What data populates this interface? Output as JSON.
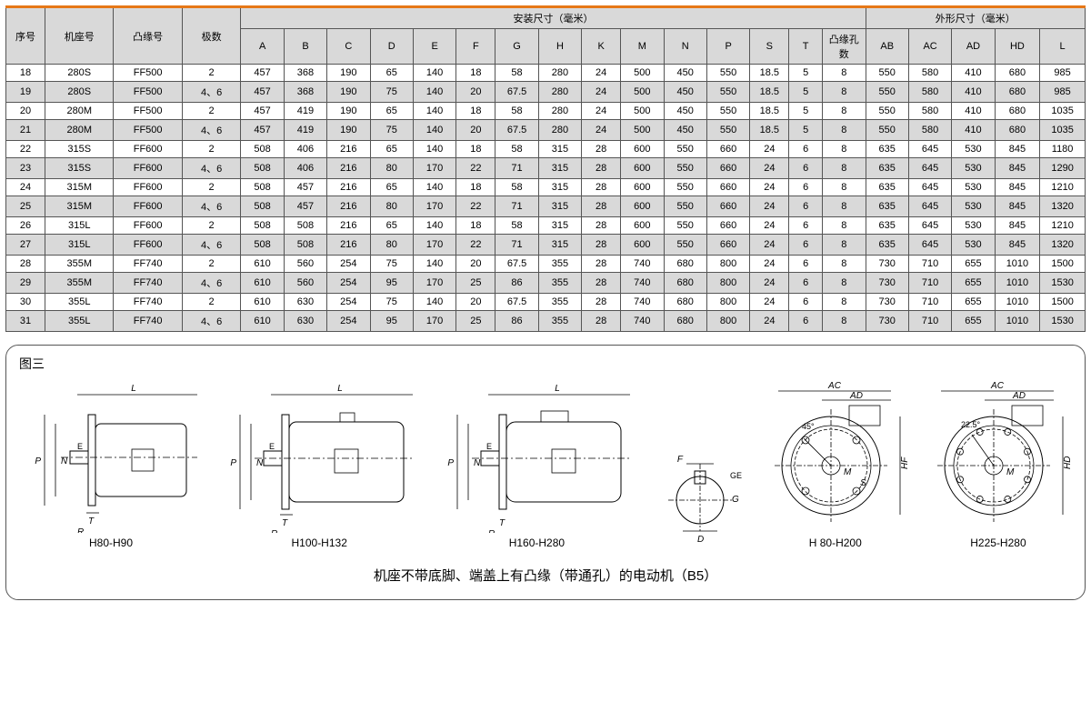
{
  "table": {
    "border_color": "#555555",
    "alt_row_bg": "#d9d9d9",
    "accent_color": "#e67817",
    "header": {
      "col_seq": "序号",
      "col_frame": "机座号",
      "col_flange": "凸缘号",
      "col_poles": "极数",
      "group_install": "安装尺寸（毫米）",
      "group_outline": "外形尺寸（毫米）",
      "A": "A",
      "B": "B",
      "C": "C",
      "D": "D",
      "E": "E",
      "F": "F",
      "G": "G",
      "H": "H",
      "K": "K",
      "M": "M",
      "N": "N",
      "P": "P",
      "S": "S",
      "T": "T",
      "flange_holes": "凸缘孔数",
      "AB": "AB",
      "AC": "AC",
      "AD": "AD",
      "HD": "HD",
      "L": "L"
    },
    "col_widths": {
      "seq": 40,
      "frame": 70,
      "flange": 70,
      "poles": 60,
      "A": 44,
      "B": 44,
      "C": 44,
      "D": 44,
      "E": 44,
      "F": 40,
      "G": 44,
      "H": 44,
      "K": 40,
      "M": 44,
      "N": 44,
      "P": 44,
      "S": 40,
      "T": 34,
      "holes": 44,
      "AB": 44,
      "AC": 44,
      "AD": 44,
      "HD": 46,
      "L": 46
    },
    "rows": [
      {
        "seq": "18",
        "frame": "280S",
        "flange": "FF500",
        "poles": "2",
        "A": "457",
        "B": "368",
        "C": "190",
        "D": "65",
        "E": "140",
        "F": "18",
        "G": "58",
        "H": "280",
        "K": "24",
        "M": "500",
        "N": "450",
        "P": "550",
        "S": "18.5",
        "T": "5",
        "holes": "8",
        "AB": "550",
        "AC": "580",
        "AD": "410",
        "HD": "680",
        "L": "985"
      },
      {
        "seq": "19",
        "frame": "280S",
        "flange": "FF500",
        "poles": "4、6",
        "A": "457",
        "B": "368",
        "C": "190",
        "D": "75",
        "E": "140",
        "F": "20",
        "G": "67.5",
        "H": "280",
        "K": "24",
        "M": "500",
        "N": "450",
        "P": "550",
        "S": "18.5",
        "T": "5",
        "holes": "8",
        "AB": "550",
        "AC": "580",
        "AD": "410",
        "HD": "680",
        "L": "985"
      },
      {
        "seq": "20",
        "frame": "280M",
        "flange": "FF500",
        "poles": "2",
        "A": "457",
        "B": "419",
        "C": "190",
        "D": "65",
        "E": "140",
        "F": "18",
        "G": "58",
        "H": "280",
        "K": "24",
        "M": "500",
        "N": "450",
        "P": "550",
        "S": "18.5",
        "T": "5",
        "holes": "8",
        "AB": "550",
        "AC": "580",
        "AD": "410",
        "HD": "680",
        "L": "1035"
      },
      {
        "seq": "21",
        "frame": "280M",
        "flange": "FF500",
        "poles": "4、6",
        "A": "457",
        "B": "419",
        "C": "190",
        "D": "75",
        "E": "140",
        "F": "20",
        "G": "67.5",
        "H": "280",
        "K": "24",
        "M": "500",
        "N": "450",
        "P": "550",
        "S": "18.5",
        "T": "5",
        "holes": "8",
        "AB": "550",
        "AC": "580",
        "AD": "410",
        "HD": "680",
        "L": "1035"
      },
      {
        "seq": "22",
        "frame": "315S",
        "flange": "FF600",
        "poles": "2",
        "A": "508",
        "B": "406",
        "C": "216",
        "D": "65",
        "E": "140",
        "F": "18",
        "G": "58",
        "H": "315",
        "K": "28",
        "M": "600",
        "N": "550",
        "P": "660",
        "S": "24",
        "T": "6",
        "holes": "8",
        "AB": "635",
        "AC": "645",
        "AD": "530",
        "HD": "845",
        "L": "1180"
      },
      {
        "seq": "23",
        "frame": "315S",
        "flange": "FF600",
        "poles": "4、6",
        "A": "508",
        "B": "406",
        "C": "216",
        "D": "80",
        "E": "170",
        "F": "22",
        "G": "71",
        "H": "315",
        "K": "28",
        "M": "600",
        "N": "550",
        "P": "660",
        "S": "24",
        "T": "6",
        "holes": "8",
        "AB": "635",
        "AC": "645",
        "AD": "530",
        "HD": "845",
        "L": "1290"
      },
      {
        "seq": "24",
        "frame": "315M",
        "flange": "FF600",
        "poles": "2",
        "A": "508",
        "B": "457",
        "C": "216",
        "D": "65",
        "E": "140",
        "F": "18",
        "G": "58",
        "H": "315",
        "K": "28",
        "M": "600",
        "N": "550",
        "P": "660",
        "S": "24",
        "T": "6",
        "holes": "8",
        "AB": "635",
        "AC": "645",
        "AD": "530",
        "HD": "845",
        "L": "1210"
      },
      {
        "seq": "25",
        "frame": "315M",
        "flange": "FF600",
        "poles": "4、6",
        "A": "508",
        "B": "457",
        "C": "216",
        "D": "80",
        "E": "170",
        "F": "22",
        "G": "71",
        "H": "315",
        "K": "28",
        "M": "600",
        "N": "550",
        "P": "660",
        "S": "24",
        "T": "6",
        "holes": "8",
        "AB": "635",
        "AC": "645",
        "AD": "530",
        "HD": "845",
        "L": "1320"
      },
      {
        "seq": "26",
        "frame": "315L",
        "flange": "FF600",
        "poles": "2",
        "A": "508",
        "B": "508",
        "C": "216",
        "D": "65",
        "E": "140",
        "F": "18",
        "G": "58",
        "H": "315",
        "K": "28",
        "M": "600",
        "N": "550",
        "P": "660",
        "S": "24",
        "T": "6",
        "holes": "8",
        "AB": "635",
        "AC": "645",
        "AD": "530",
        "HD": "845",
        "L": "1210"
      },
      {
        "seq": "27",
        "frame": "315L",
        "flange": "FF600",
        "poles": "4、6",
        "A": "508",
        "B": "508",
        "C": "216",
        "D": "80",
        "E": "170",
        "F": "22",
        "G": "71",
        "H": "315",
        "K": "28",
        "M": "600",
        "N": "550",
        "P": "660",
        "S": "24",
        "T": "6",
        "holes": "8",
        "AB": "635",
        "AC": "645",
        "AD": "530",
        "HD": "845",
        "L": "1320"
      },
      {
        "seq": "28",
        "frame": "355M",
        "flange": "FF740",
        "poles": "2",
        "A": "610",
        "B": "560",
        "C": "254",
        "D": "75",
        "E": "140",
        "F": "20",
        "G": "67.5",
        "H": "355",
        "K": "28",
        "M": "740",
        "N": "680",
        "P": "800",
        "S": "24",
        "T": "6",
        "holes": "8",
        "AB": "730",
        "AC": "710",
        "AD": "655",
        "HD": "1010",
        "L": "1500"
      },
      {
        "seq": "29",
        "frame": "355M",
        "flange": "FF740",
        "poles": "4、6",
        "A": "610",
        "B": "560",
        "C": "254",
        "D": "95",
        "E": "170",
        "F": "25",
        "G": "86",
        "H": "355",
        "K": "28",
        "M": "740",
        "N": "680",
        "P": "800",
        "S": "24",
        "T": "6",
        "holes": "8",
        "AB": "730",
        "AC": "710",
        "AD": "655",
        "HD": "1010",
        "L": "1530"
      },
      {
        "seq": "30",
        "frame": "355L",
        "flange": "FF740",
        "poles": "2",
        "A": "610",
        "B": "630",
        "C": "254",
        "D": "75",
        "E": "140",
        "F": "20",
        "G": "67.5",
        "H": "355",
        "K": "28",
        "M": "740",
        "N": "680",
        "P": "800",
        "S": "24",
        "T": "6",
        "holes": "8",
        "AB": "730",
        "AC": "710",
        "AD": "655",
        "HD": "1010",
        "L": "1500"
      },
      {
        "seq": "31",
        "frame": "355L",
        "flange": "FF740",
        "poles": "4、6",
        "A": "610",
        "B": "630",
        "C": "254",
        "D": "95",
        "E": "170",
        "F": "25",
        "G": "86",
        "H": "355",
        "K": "28",
        "M": "740",
        "N": "680",
        "P": "800",
        "S": "24",
        "T": "6",
        "holes": "8",
        "AB": "730",
        "AC": "710",
        "AD": "655",
        "HD": "1010",
        "L": "1530"
      }
    ]
  },
  "diagram": {
    "title": "图三",
    "items": [
      {
        "label": "H80-H90"
      },
      {
        "label": "H100-H132"
      },
      {
        "label": "H160-H280"
      },
      {
        "label": ""
      },
      {
        "label": "H 80-H200"
      },
      {
        "label": "H225-H280"
      }
    ],
    "dim_labels": {
      "L": "L",
      "E": "E",
      "P": "P",
      "N": "N",
      "T": "T",
      "R": "R",
      "F": "F",
      "D": "D",
      "G": "G",
      "GE": "GE",
      "AC": "AC",
      "AD": "AD",
      "HF": "HF",
      "HD": "HD",
      "M": "M",
      "S": "S",
      "a45": "45°",
      "a225": "22.5°"
    },
    "caption": "机座不带底脚、端盖上有凸缘（带通孔）的电动机（B5）"
  }
}
